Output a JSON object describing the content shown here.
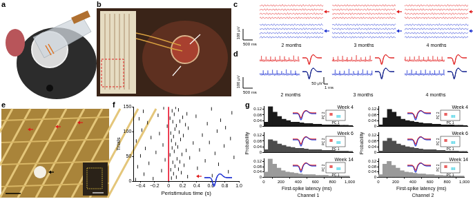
{
  "panel_labels": [
    "a",
    "b",
    "c",
    "d",
    "e",
    "f",
    "g"
  ],
  "c": {
    "v_scale": "100 μV",
    "t_scale": "500 ms",
    "times": [
      "2 months",
      "3 months",
      "4 months"
    ]
  },
  "d": {
    "v_scale": "100 μV",
    "t_scale": "500 ms",
    "wave_v_scale": "50 μV",
    "wave_t_scale": "1 ms",
    "times": [
      "2 months",
      "3 months",
      "4 months"
    ]
  },
  "chart_data": [
    {
      "type": "scatter",
      "xlabel": "Peristimulus time (s)",
      "ylabel": "Trials",
      "color": "#000000",
      "marker": "tick",
      "grid": false,
      "x": [
        -0.47,
        -0.22,
        0.04,
        0.11,
        0.27,
        0.62,
        -0.35,
        0.07,
        0.18,
        0.85,
        -0.1,
        0.03,
        0.14,
        0.41,
        -0.44,
        0.09,
        0.22,
        0.71,
        -0.28,
        0.06,
        0.16,
        0.52,
        -0.05,
        0.12,
        0.3,
        0.93,
        -0.4,
        0.02,
        0.19,
        0.66,
        -0.18,
        0.08,
        0.25,
        0.44,
        -0.33,
        0.05,
        0.13,
        0.79,
        -0.08,
        0.1,
        0.35,
        0.58,
        -0.46,
        0.04,
        0.17,
        0.88,
        -0.25,
        0.07,
        0.21,
        0.48,
        -0.13,
        0.03,
        0.15,
        0.69,
        -0.38,
        0.09,
        0.28,
        0.81,
        -0.02,
        0.11,
        0.24,
        0.55,
        -0.3,
        0.06,
        0.16,
        0.74,
        -0.42,
        0.02,
        0.2,
        0.39,
        -0.15,
        0.08,
        0.26,
        0.9,
        -0.36,
        0.05,
        0.14,
        0.61,
        -0.07,
        0.1
      ],
      "values": [
        3,
        5,
        6,
        8,
        9,
        11,
        14,
        15,
        17,
        19,
        21,
        23,
        24,
        26,
        29,
        30,
        32,
        34,
        36,
        38,
        39,
        41,
        43,
        45,
        47,
        48,
        51,
        53,
        54,
        56,
        58,
        60,
        62,
        63,
        66,
        67,
        69,
        71,
        73,
        75,
        77,
        78,
        81,
        82,
        84,
        86,
        88,
        90,
        92,
        93,
        96,
        97,
        99,
        101,
        103,
        105,
        107,
        108,
        111,
        112,
        114,
        116,
        118,
        120,
        121,
        123,
        126,
        127,
        129,
        131,
        133,
        135,
        136,
        138,
        141,
        142,
        144,
        146,
        148,
        149
      ],
      "xlim": [
        -0.5,
        1.0
      ],
      "xticks": [
        {
          "value": -0.4,
          "label": "−0.4"
        },
        {
          "value": -0.2,
          "label": "−0.2"
        },
        0,
        0.2,
        0.4,
        0.6,
        0.8,
        {
          "value": 1,
          "label": "1.0"
        }
      ],
      "ylim": [
        0,
        150
      ],
      "yticks": [
        0,
        50,
        100,
        150
      ],
      "stimulus_line": {
        "x": 0,
        "color": "#e8001c"
      }
    },
    {
      "type": "histogram",
      "title": "Week 4",
      "color": "#1a1a1a",
      "grid": false,
      "tick_labels": "y",
      "bins": [
        0,
        50,
        100,
        150,
        200,
        250,
        300,
        350,
        400,
        450,
        500,
        550,
        600,
        650,
        700,
        750,
        800,
        850,
        900,
        950,
        1000
      ],
      "values": [
        0.03,
        0.14,
        0.1,
        0.07,
        0.05,
        0.04,
        0.03,
        0.03,
        0.025,
        0.02,
        0.02,
        0.015,
        0.015,
        0.01,
        0.01,
        0.01,
        0.01,
        0.008,
        0.008,
        0.005
      ],
      "xlim": [
        0,
        1000
      ],
      "ylim": [
        0,
        0.14
      ],
      "yticks": [
        0,
        0.04,
        0.08,
        0.12
      ],
      "inset_labels": {
        "x": "PC 1",
        "y": "PC 2"
      }
    },
    {
      "type": "histogram",
      "title": "Week 6",
      "color": "#4d4d4d",
      "grid": false,
      "tick_labels": "y",
      "ylabel": "Probability",
      "bins": [
        0,
        50,
        100,
        150,
        200,
        250,
        300,
        350,
        400,
        450,
        500,
        550,
        600,
        650,
        700,
        750,
        800,
        850,
        900,
        950,
        1000
      ],
      "values": [
        0.02,
        0.09,
        0.08,
        0.06,
        0.05,
        0.04,
        0.035,
        0.03,
        0.03,
        0.025,
        0.02,
        0.02,
        0.02,
        0.015,
        0.015,
        0.015,
        0.01,
        0.01,
        0.01,
        0.008
      ],
      "xlim": [
        0,
        1000
      ],
      "ylim": [
        0,
        0.14
      ],
      "yticks": [
        0,
        0.04,
        0.08,
        0.12
      ],
      "inset_labels": {
        "x": "PC 1",
        "y": "PC 2"
      }
    },
    {
      "type": "histogram",
      "title": "Week 14",
      "color": "#9a9a9a",
      "grid": false,
      "xlabel": "First-spike latency (ms)",
      "caption": "Channel 1",
      "bins": [
        0,
        50,
        100,
        150,
        200,
        250,
        300,
        350,
        400,
        450,
        500,
        550,
        600,
        650,
        700,
        750,
        800,
        850,
        900,
        950,
        1000
      ],
      "values": [
        0.04,
        0.14,
        0.1,
        0.07,
        0.05,
        0.04,
        0.035,
        0.03,
        0.025,
        0.02,
        0.02,
        0.02,
        0.015,
        0.015,
        0.015,
        0.01,
        0.01,
        0.01,
        0.01,
        0.01
      ],
      "xlim": [
        0,
        1000
      ],
      "xticks": [
        0,
        200,
        400,
        600,
        800,
        {
          "value": 1000,
          "label": "1,000"
        }
      ],
      "ylim": [
        0,
        0.14
      ],
      "yticks": [
        0,
        0.04,
        0.08,
        0.12
      ],
      "inset_labels": {
        "x": "PC 1",
        "y": "PC 2"
      }
    },
    {
      "type": "histogram",
      "title": "Week 4",
      "color": "#1a1a1a",
      "grid": false,
      "tick_labels": "y",
      "bins": [
        0,
        50,
        100,
        150,
        200,
        250,
        300,
        350,
        400,
        450,
        500,
        550,
        600,
        650,
        700,
        750,
        800,
        850,
        900,
        950,
        1000
      ],
      "values": [
        0.01,
        0.06,
        0.12,
        0.1,
        0.07,
        0.05,
        0.04,
        0.035,
        0.03,
        0.025,
        0.02,
        0.02,
        0.015,
        0.015,
        0.01,
        0.01,
        0.01,
        0.008,
        0.008,
        0.005
      ],
      "xlim": [
        0,
        1000
      ],
      "ylim": [
        0,
        0.14
      ],
      "yticks": [
        0,
        0.04,
        0.08,
        0.12
      ],
      "inset_labels": {
        "x": "PC 1",
        "y": "PC 2"
      }
    },
    {
      "type": "histogram",
      "title": "Week 6",
      "color": "#4d4d4d",
      "grid": false,
      "tick_labels": "y",
      "ylabel": "Probability",
      "bins": [
        0,
        50,
        100,
        150,
        200,
        250,
        300,
        350,
        400,
        450,
        500,
        550,
        600,
        650,
        700,
        750,
        800,
        850,
        900,
        950,
        1000
      ],
      "values": [
        0.01,
        0.08,
        0.1,
        0.08,
        0.06,
        0.05,
        0.04,
        0.035,
        0.03,
        0.025,
        0.02,
        0.02,
        0.02,
        0.015,
        0.015,
        0.01,
        0.01,
        0.01,
        0.008,
        0.008
      ],
      "xlim": [
        0,
        1000
      ],
      "ylim": [
        0,
        0.14
      ],
      "yticks": [
        0,
        0.04,
        0.08,
        0.12
      ],
      "inset_labels": {
        "x": "PC 1",
        "y": "PC 2"
      }
    },
    {
      "type": "histogram",
      "title": "Week 14",
      "color": "#9a9a9a",
      "grid": false,
      "xlabel": "First-spike latency (ms)",
      "caption": "Channel 2",
      "bins": [
        0,
        50,
        100,
        150,
        200,
        250,
        300,
        350,
        400,
        450,
        500,
        550,
        600,
        650,
        700,
        750,
        800,
        850,
        900,
        950,
        1000
      ],
      "values": [
        0.02,
        0.1,
        0.12,
        0.09,
        0.07,
        0.05,
        0.04,
        0.035,
        0.03,
        0.025,
        0.025,
        0.02,
        0.02,
        0.015,
        0.015,
        0.012,
        0.01,
        0.01,
        0.01,
        0.01
      ],
      "xlim": [
        0,
        1000
      ],
      "xticks": [
        0,
        200,
        400,
        600,
        800,
        {
          "value": 1000,
          "label": "1,000"
        }
      ],
      "ylim": [
        0,
        0.14
      ],
      "yticks": [
        0,
        0.04,
        0.08,
        0.12
      ],
      "inset_labels": {
        "x": "PC 1",
        "y": "PC 2"
      }
    }
  ]
}
